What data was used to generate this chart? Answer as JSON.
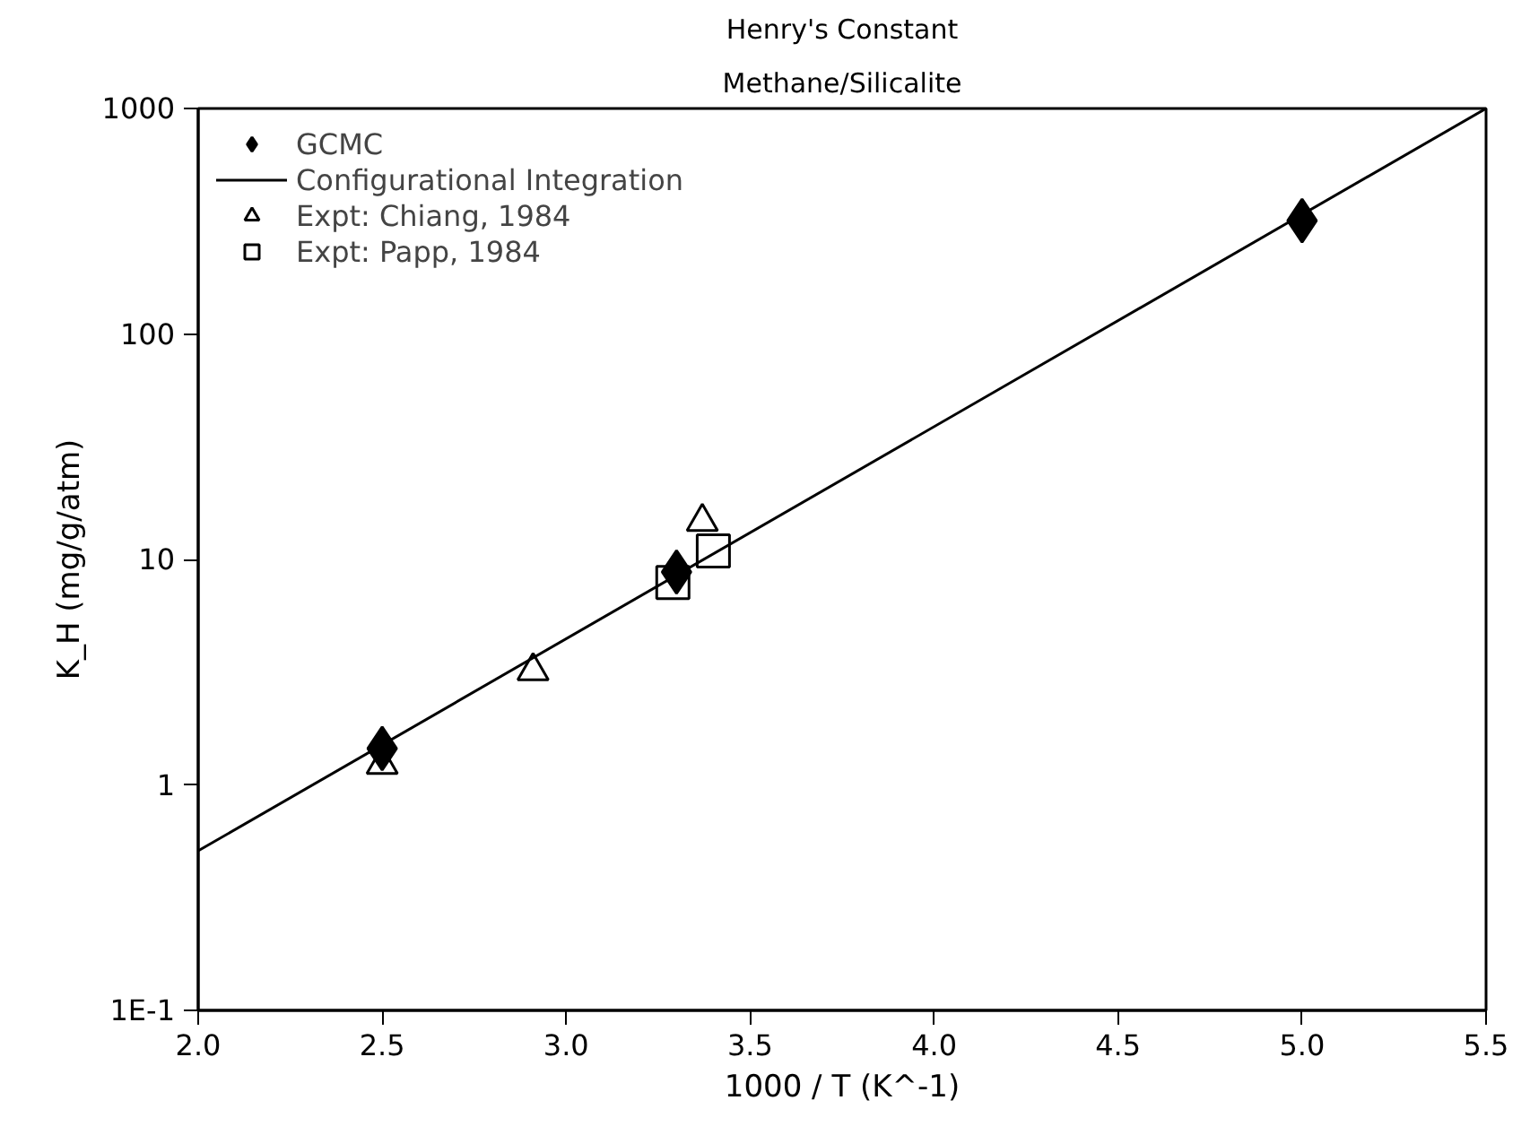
{
  "chart_data": {
    "type": "scatter",
    "title": "Henry's Constant",
    "subtitle": "Methane/Silicalite",
    "xlabel": "1000 / T (K^-1)",
    "ylabel": "K_H (mg/g/atm)",
    "log": "y",
    "xlim": [
      2.0,
      5.5
    ],
    "ylim": [
      0.1,
      1000
    ],
    "xticks": [
      {
        "value": 2.0,
        "label": "2.0"
      },
      {
        "value": 2.5,
        "label": "2.5"
      },
      {
        "value": 3.0,
        "label": "3.0"
      },
      {
        "value": 3.5,
        "label": "3.5"
      },
      {
        "value": 4.0,
        "label": "4.0"
      },
      {
        "value": 4.5,
        "label": "4.5"
      },
      {
        "value": 5.0,
        "label": "5.0"
      },
      {
        "value": 5.5,
        "label": "5.5"
      }
    ],
    "yticks": [
      {
        "value": 0.1,
        "label": "1E-1"
      },
      1,
      10,
      100,
      1000
    ],
    "grid": false,
    "legend": "top left",
    "series": [
      {
        "name": "GCMC",
        "marker": "diamond",
        "color": "#000000",
        "x": [
          2.5,
          3.3,
          5.0
        ],
        "values": [
          1.45,
          8.8,
          318
        ]
      },
      {
        "name": "Configurational Integration",
        "type": "line",
        "marker": "none",
        "line_style": "solid",
        "color": "#000000",
        "x": [
          2.0,
          5.5
        ],
        "values": [
          0.51,
          1000
        ]
      },
      {
        "name": "Expt: Chiang, 1984",
        "marker": "triangle",
        "color": "#000000",
        "x": [
          2.5,
          2.91,
          3.37
        ],
        "values": [
          1.23,
          3.2,
          14.7
        ]
      },
      {
        "name": "Expt: Papp, 1984",
        "marker": "square",
        "color": "#000000",
        "x": [
          3.29,
          3.4
        ],
        "values": [
          7.9,
          10.9
        ]
      }
    ]
  }
}
